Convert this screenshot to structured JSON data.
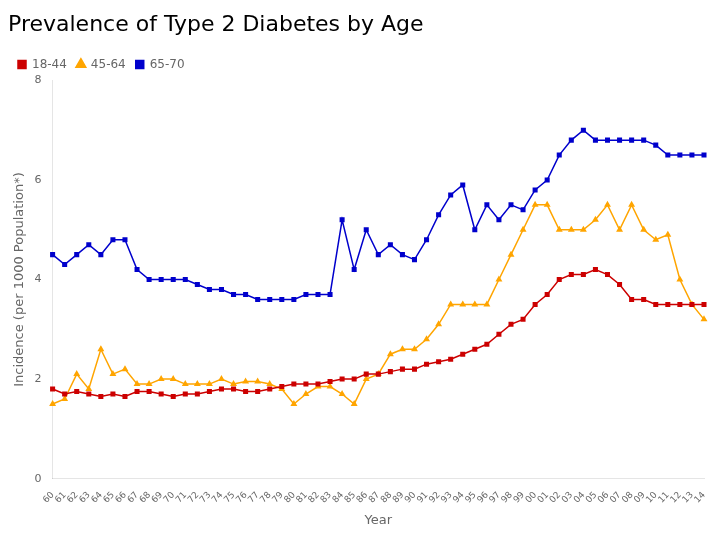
{
  "chart_data": {
    "type": "line",
    "title": "Prevalence of Type 2 Diabetes by Age",
    "xlabel": "Year",
    "ylabel": "Incidence (per 1000 Population*)",
    "categories": [
      "60",
      "61",
      "62",
      "63",
      "64",
      "65",
      "66",
      "67",
      "68",
      "69",
      "70",
      "71",
      "72",
      "73",
      "74",
      "75",
      "76",
      "77",
      "78",
      "79",
      "80",
      "81",
      "82",
      "83",
      "84",
      "85",
      "86",
      "87",
      "88",
      "89",
      "90",
      "91",
      "92",
      "93",
      "94",
      "95",
      "96",
      "97",
      "98",
      "99",
      "00",
      "01",
      "02",
      "03",
      "04",
      "05",
      "06",
      "07",
      "08",
      "09",
      "10",
      "11",
      "12",
      "13",
      "14"
    ],
    "series": [
      {
        "name": "18-44",
        "color": "#cc0000",
        "marker": "square",
        "line_style": "solid",
        "values": [
          1.8,
          1.7,
          1.75,
          1.7,
          1.65,
          1.7,
          1.65,
          1.75,
          1.75,
          1.7,
          1.65,
          1.7,
          1.7,
          1.75,
          1.8,
          1.8,
          1.75,
          1.75,
          1.8,
          1.85,
          1.9,
          1.9,
          1.9,
          1.95,
          2.0,
          2.0,
          2.1,
          2.1,
          2.15,
          2.2,
          2.2,
          2.3,
          2.35,
          2.4,
          2.5,
          2.6,
          2.7,
          2.9,
          3.1,
          3.2,
          3.5,
          3.7,
          4.0,
          4.1,
          4.1,
          4.2,
          4.1,
          3.9,
          3.6,
          3.6,
          3.5,
          3.5,
          3.5,
          3.5,
          3.5
        ]
      },
      {
        "name": "45-64",
        "color": "#ffa500",
        "marker": "triangle",
        "line_style": "solid",
        "values": [
          1.5,
          1.6,
          2.1,
          1.8,
          2.6,
          2.1,
          2.2,
          1.9,
          1.9,
          2.0,
          2.0,
          1.9,
          1.9,
          1.9,
          2.0,
          1.9,
          1.95,
          1.95,
          1.9,
          1.8,
          1.5,
          1.7,
          1.85,
          1.85,
          1.7,
          1.5,
          2.0,
          2.1,
          2.5,
          2.6,
          2.6,
          2.8,
          3.1,
          3.5,
          3.5,
          3.5,
          3.5,
          4.0,
          4.5,
          5.0,
          5.5,
          5.5,
          5.0,
          5.0,
          5.0,
          5.2,
          5.5,
          5.0,
          5.5,
          5.0,
          4.8,
          4.9,
          4.0,
          3.5,
          3.2
        ]
      },
      {
        "name": "65-70",
        "color": "#0000cc",
        "marker": "square",
        "line_style": "solid",
        "values": [
          4.5,
          4.3,
          4.5,
          4.7,
          4.5,
          4.8,
          4.8,
          4.2,
          4.0,
          4.0,
          4.0,
          4.0,
          3.9,
          3.8,
          3.8,
          3.7,
          3.7,
          3.6,
          3.6,
          3.6,
          3.6,
          3.7,
          3.7,
          3.7,
          5.2,
          4.2,
          5.0,
          4.5,
          4.7,
          4.5,
          4.4,
          4.8,
          5.3,
          5.7,
          5.9,
          5.0,
          5.5,
          5.2,
          5.5,
          5.4,
          5.8,
          6.0,
          6.5,
          6.8,
          7.0,
          6.8,
          6.8,
          6.8,
          6.8,
          6.8,
          6.7,
          6.5,
          6.5,
          6.5,
          6.5
        ]
      }
    ],
    "ylim": [
      0,
      8
    ],
    "yticks": [
      0,
      2,
      4,
      6,
      8
    ],
    "grid": false,
    "legend": "upper left"
  }
}
